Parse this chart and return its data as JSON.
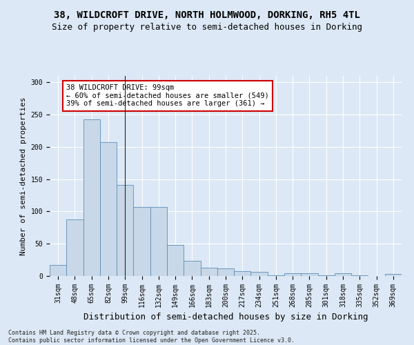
{
  "title": "38, WILDCROFT DRIVE, NORTH HOLMWOOD, DORKING, RH5 4TL",
  "subtitle": "Size of property relative to semi-detached houses in Dorking",
  "xlabel": "Distribution of semi-detached houses by size in Dorking",
  "ylabel": "Number of semi-detached properties",
  "categories": [
    "31sqm",
    "48sqm",
    "65sqm",
    "82sqm",
    "99sqm",
    "116sqm",
    "132sqm",
    "149sqm",
    "166sqm",
    "183sqm",
    "200sqm",
    "217sqm",
    "234sqm",
    "251sqm",
    "268sqm",
    "285sqm",
    "301sqm",
    "318sqm",
    "335sqm",
    "352sqm",
    "369sqm"
  ],
  "values": [
    17,
    88,
    243,
    207,
    141,
    107,
    107,
    48,
    24,
    13,
    12,
    8,
    6,
    1,
    4,
    4,
    1,
    4,
    1,
    0,
    3
  ],
  "bar_color": "#c8d8e8",
  "bar_edge_color": "#5b8db8",
  "subject_line_index": 4,
  "annotation_text": "38 WILDCROFT DRIVE: 99sqm\n← 60% of semi-detached houses are smaller (549)\n39% of semi-detached houses are larger (361) →",
  "annotation_box_facecolor": "#ffffff",
  "annotation_edge_color": "#cc0000",
  "footer1": "Contains HM Land Registry data © Crown copyright and database right 2025.",
  "footer2": "Contains public sector information licensed under the Open Government Licence v3.0.",
  "background_color": "#dce8f5",
  "ylim": [
    0,
    310
  ],
  "yticks": [
    0,
    50,
    100,
    150,
    200,
    250,
    300
  ],
  "grid_color": "#ffffff",
  "title_fontsize": 10,
  "subtitle_fontsize": 9,
  "xlabel_fontsize": 9,
  "ylabel_fontsize": 8,
  "tick_fontsize": 7,
  "annot_fontsize": 7.5
}
